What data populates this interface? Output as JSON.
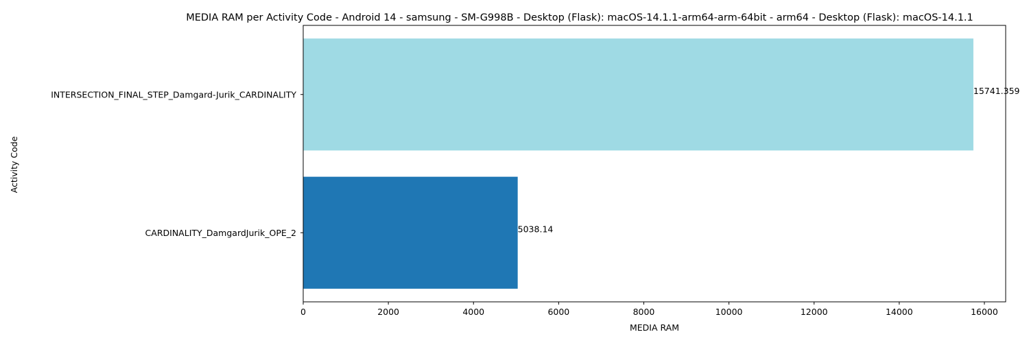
{
  "chart_data": {
    "type": "bar",
    "orientation": "horizontal",
    "title": "MEDIA RAM per Activity Code - Android 14 - samsung - SM-G998B - Desktop (Flask): macOS-14.1.1-arm64-arm-64bit - arm64 - Desktop (Flask): macOS-14.1.1",
    "xlabel": "MEDIA RAM",
    "ylabel": "Activity Code",
    "xlim": [
      0,
      16500
    ],
    "x_ticks": [
      0,
      2000,
      4000,
      6000,
      8000,
      10000,
      12000,
      14000,
      16000
    ],
    "categories": [
      "INTERSECTION_FINAL_STEP_Damgard-Jurik_CARDINALITY",
      "CARDINALITY_DamgardJurik_OPE_2"
    ],
    "values": [
      15741.359,
      5038.14
    ],
    "value_labels": [
      "15741.359",
      "5038.14"
    ],
    "colors": [
      "#9fdae4",
      "#1f77b4"
    ],
    "grid": false,
    "legend": "none"
  }
}
